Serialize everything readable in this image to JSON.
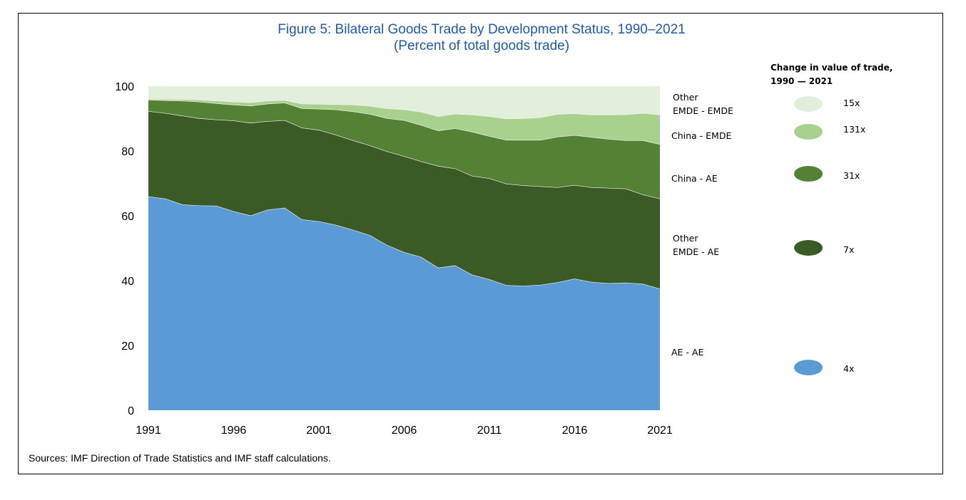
{
  "chart_data": {
    "type": "area",
    "stacked": true,
    "title": "Figure 5: Bilateral Goods Trade by Development Status, 1990–2021",
    "subtitle": "(Percent of total goods trade)",
    "xlabel": "",
    "ylabel": "",
    "ylim": [
      0,
      100
    ],
    "yticks": [
      "0",
      "20",
      "40",
      "60",
      "80",
      "100"
    ],
    "xticks": [
      "1991",
      "1996",
      "2001",
      "2006",
      "2011",
      "2016",
      "2021"
    ],
    "x": [
      1991,
      1992,
      1993,
      1994,
      1995,
      1996,
      1997,
      1998,
      1999,
      2000,
      2001,
      2002,
      2003,
      2004,
      2005,
      2006,
      2007,
      2008,
      2009,
      2010,
      2011,
      2012,
      2013,
      2014,
      2015,
      2016,
      2017,
      2018,
      2019,
      2020,
      2021
    ],
    "series": [
      {
        "name": "AE - AE",
        "label_lines": [
          "AE - AE"
        ],
        "color": "#5b9bd5",
        "change": "4x",
        "values": [
          66.0,
          65.3,
          63.5,
          63.2,
          63.1,
          61.4,
          60.1,
          61.9,
          62.5,
          58.9,
          58.3,
          57.2,
          55.7,
          54.0,
          51.0,
          48.8,
          47.3,
          44.0,
          44.7,
          41.8,
          40.4,
          38.6,
          38.4,
          38.7,
          39.5,
          40.6,
          39.6,
          39.2,
          39.4,
          39.0,
          37.5
        ]
      },
      {
        "name": "Other EMDE - AE",
        "label_lines": [
          "Other",
          "EMDE - AE"
        ],
        "color": "#3a5a26",
        "change": "7x",
        "values": [
          26.3,
          26.4,
          27.4,
          26.9,
          26.6,
          28.0,
          28.6,
          27.3,
          27.0,
          28.3,
          28.2,
          27.8,
          27.6,
          27.7,
          28.9,
          29.6,
          29.5,
          31.4,
          29.9,
          30.5,
          31.2,
          31.3,
          31.0,
          30.4,
          29.3,
          28.9,
          29.2,
          29.4,
          29.0,
          27.6,
          27.8
        ]
      },
      {
        "name": "China - AE",
        "label_lines": [
          "China - AE"
        ],
        "color": "#548235",
        "change": "31x",
        "values": [
          3.5,
          3.9,
          4.6,
          5.1,
          5.0,
          4.9,
          5.3,
          5.4,
          5.4,
          6.0,
          6.5,
          7.8,
          8.9,
          9.7,
          10.2,
          11.1,
          11.2,
          10.9,
          12.4,
          13.6,
          13.0,
          13.5,
          14.0,
          14.3,
          15.6,
          15.4,
          15.5,
          15.1,
          14.9,
          16.7,
          16.8
        ]
      },
      {
        "name": "China - EMDE",
        "label_lines": [
          "China - EMDE"
        ],
        "color": "#a9d18e",
        "change": "131x",
        "values": [
          0.3,
          0.4,
          0.5,
          0.6,
          0.8,
          0.9,
          1.0,
          0.9,
          0.8,
          1.4,
          1.5,
          1.6,
          2.1,
          2.5,
          3.0,
          3.3,
          4.1,
          4.4,
          4.5,
          5.3,
          6.1,
          6.6,
          6.7,
          7.0,
          7.0,
          6.7,
          6.9,
          7.5,
          8.0,
          8.4,
          9.1
        ]
      },
      {
        "name": "Other EMDE - EMDE",
        "label_lines": [
          "Other",
          "EMDE - EMDE"
        ],
        "color": "#e2efda",
        "change": "15x",
        "values": [
          3.9,
          4.0,
          4.0,
          4.2,
          4.5,
          4.8,
          5.0,
          4.5,
          4.3,
          5.4,
          5.5,
          5.6,
          5.7,
          6.1,
          6.9,
          7.2,
          7.9,
          9.3,
          8.5,
          8.8,
          9.3,
          10.0,
          9.9,
          9.6,
          8.6,
          8.4,
          8.8,
          8.8,
          8.7,
          8.3,
          8.8
        ]
      }
    ],
    "legend": {
      "title_lines": [
        "Change in value of trade,",
        "1990 — 2021"
      ],
      "placement": "right"
    },
    "grid": false
  },
  "source": "Sources: IMF Direction of Trade Statistics and IMF staff calculations."
}
